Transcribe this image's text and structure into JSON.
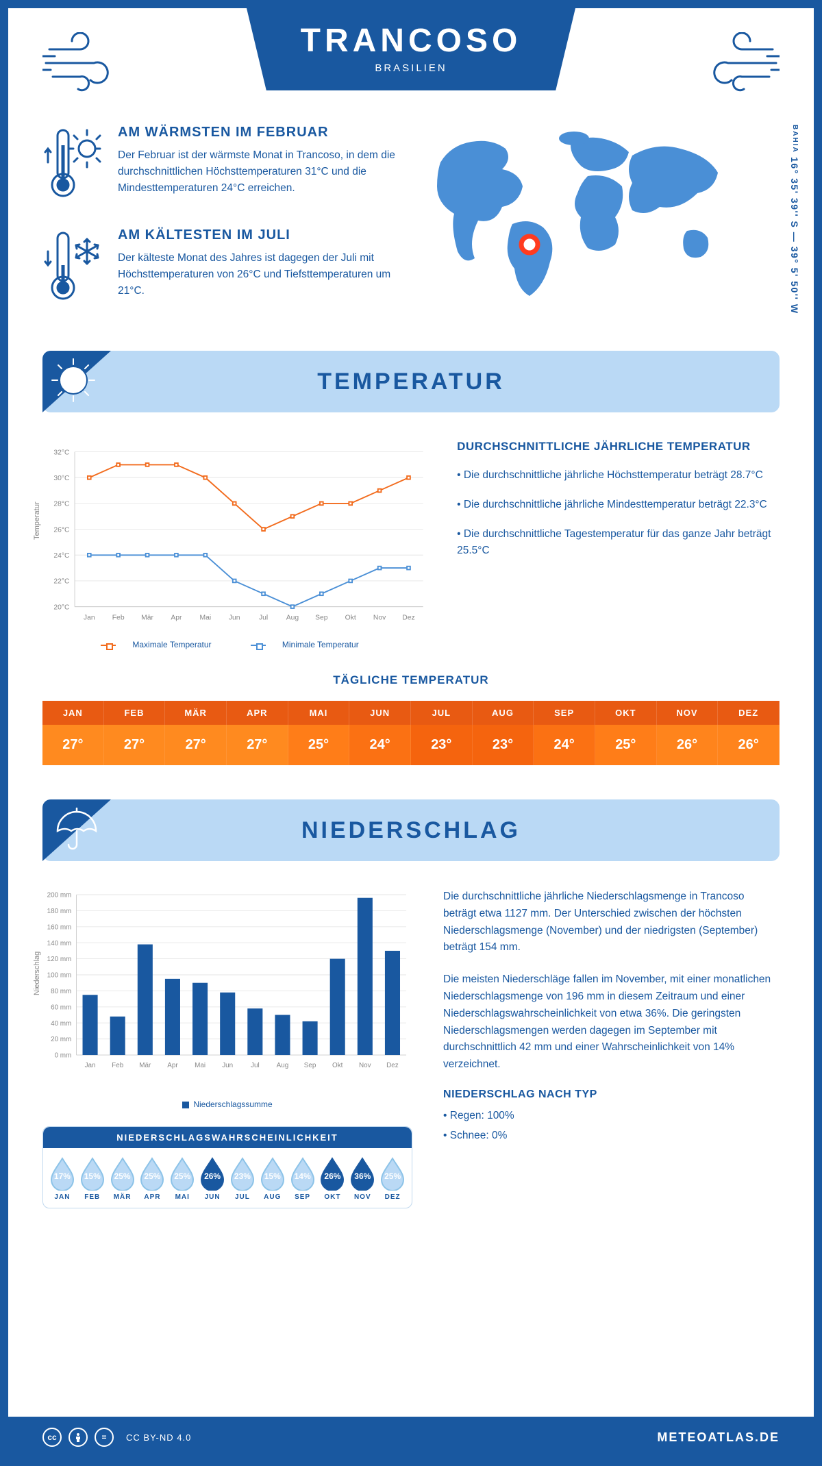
{
  "colors": {
    "primary": "#1958a0",
    "light_blue": "#bad9f5",
    "map_blue": "#4a8fd6",
    "orange_header": "#e85a12",
    "line_max": "#f26a1b",
    "line_min": "#4a8fd6",
    "grid": "#e6e6e6",
    "axis_text": "#888888"
  },
  "header": {
    "city": "TRANCOSO",
    "country": "BRASILIEN"
  },
  "coords": {
    "region": "BAHIA",
    "lat_lon": "16° 35' 39'' S — 39° 5' 50'' W"
  },
  "facts": {
    "warm": {
      "title": "AM WÄRMSTEN IM FEBRUAR",
      "text": "Der Februar ist der wärmste Monat in Trancoso, in dem die durchschnittlichen Höchsttemperaturen 31°C und die Mindesttemperaturen 24°C erreichen."
    },
    "cold": {
      "title": "AM KÄLTESTEN IM JULI",
      "text": "Der kälteste Monat des Jahres ist dagegen der Juli mit Höchsttemperaturen von 26°C und Tiefsttemperaturen um 21°C."
    }
  },
  "months": [
    "Jan",
    "Feb",
    "Mär",
    "Apr",
    "Mai",
    "Jun",
    "Jul",
    "Aug",
    "Sep",
    "Okt",
    "Nov",
    "Dez"
  ],
  "months_upper": [
    "JAN",
    "FEB",
    "MÄR",
    "APR",
    "MAI",
    "JUN",
    "JUL",
    "AUG",
    "SEP",
    "OKT",
    "NOV",
    "DEZ"
  ],
  "temp_section": {
    "title": "TEMPERATUR"
  },
  "temp_chart": {
    "type": "line",
    "ylabel": "Temperatur",
    "ylim": [
      20,
      32
    ],
    "ytick_step": 2,
    "ytick_suffix": "°C",
    "series_max": {
      "label": "Maximale Temperatur",
      "color": "#f26a1b",
      "values": [
        30,
        31,
        31,
        31,
        30,
        28,
        26,
        27,
        28,
        28,
        29,
        30
      ]
    },
    "series_min": {
      "label": "Minimale Temperatur",
      "color": "#4a8fd6",
      "values": [
        24,
        24,
        24,
        24,
        24,
        22,
        21,
        20,
        21,
        22,
        23,
        23
      ]
    },
    "marker_style": "square",
    "marker_size": 5,
    "line_width": 2,
    "grid_color": "#e6e6e6",
    "background": "#ffffff"
  },
  "temp_side": {
    "heading": "DURCHSCHNITTLICHE JÄHRLICHE TEMPERATUR",
    "b1": "• Die durchschnittliche jährliche Höchsttemperatur beträgt 28.7°C",
    "b2": "• Die durchschnittliche jährliche Mindesttemperatur beträgt 22.3°C",
    "b3": "• Die durchschnittliche Tagestemperatur für das ganze Jahr beträgt 25.5°C"
  },
  "daily": {
    "title": "TÄGLICHE TEMPERATUR",
    "values": [
      "27°",
      "27°",
      "27°",
      "27°",
      "25°",
      "24°",
      "23°",
      "23°",
      "24°",
      "25°",
      "26°",
      "26°"
    ],
    "cell_bgs": [
      "#ff8a1f",
      "#ff8a1f",
      "#ff8a1f",
      "#ff8a1f",
      "#ff7d18",
      "#fb7113",
      "#f5640e",
      "#f5640e",
      "#fb7113",
      "#ff7d18",
      "#ff841c",
      "#ff841c"
    ]
  },
  "precip_section": {
    "title": "NIEDERSCHLAG"
  },
  "precip_chart": {
    "type": "bar",
    "ylabel": "Niederschlag",
    "ylim": [
      0,
      200
    ],
    "ytick_step": 20,
    "ytick_suffix": " mm",
    "values": [
      75,
      48,
      138,
      95,
      90,
      78,
      58,
      50,
      42,
      120,
      196,
      130
    ],
    "bar_color": "#1958a0",
    "bar_width": 0.55,
    "grid_color": "#e6e6e6",
    "legend": "Niederschlagssumme"
  },
  "precip_text": {
    "p1": "Die durchschnittliche jährliche Niederschlagsmenge in Trancoso beträgt etwa 1127 mm. Der Unterschied zwischen der höchsten Niederschlagsmenge (November) und der niedrigsten (September) beträgt 154 mm.",
    "p2": "Die meisten Niederschläge fallen im November, mit einer monatlichen Niederschlagsmenge von 196 mm in diesem Zeitraum und einer Niederschlagswahrscheinlichkeit von etwa 36%. Die geringsten Niederschlagsmengen werden dagegen im September mit durchschnittlich 42 mm und einer Wahrscheinlichkeit von 14% verzeichnet.",
    "type_heading": "NIEDERSCHLAG NACH TYP",
    "type_rain": "• Regen: 100%",
    "type_snow": "• Schnee: 0%"
  },
  "prob": {
    "title": "NIEDERSCHLAGSWAHRSCHEINLICHKEIT",
    "values": [
      17,
      15,
      25,
      25,
      25,
      26,
      23,
      15,
      14,
      26,
      36,
      25
    ],
    "fill_threshold": 26,
    "empty_stroke": "#8cc3e8",
    "empty_fill": "#bad9f5",
    "full_fill": "#1958a0"
  },
  "footer": {
    "license": "CC BY-ND 4.0",
    "brand": "METEOATLAS.DE"
  }
}
